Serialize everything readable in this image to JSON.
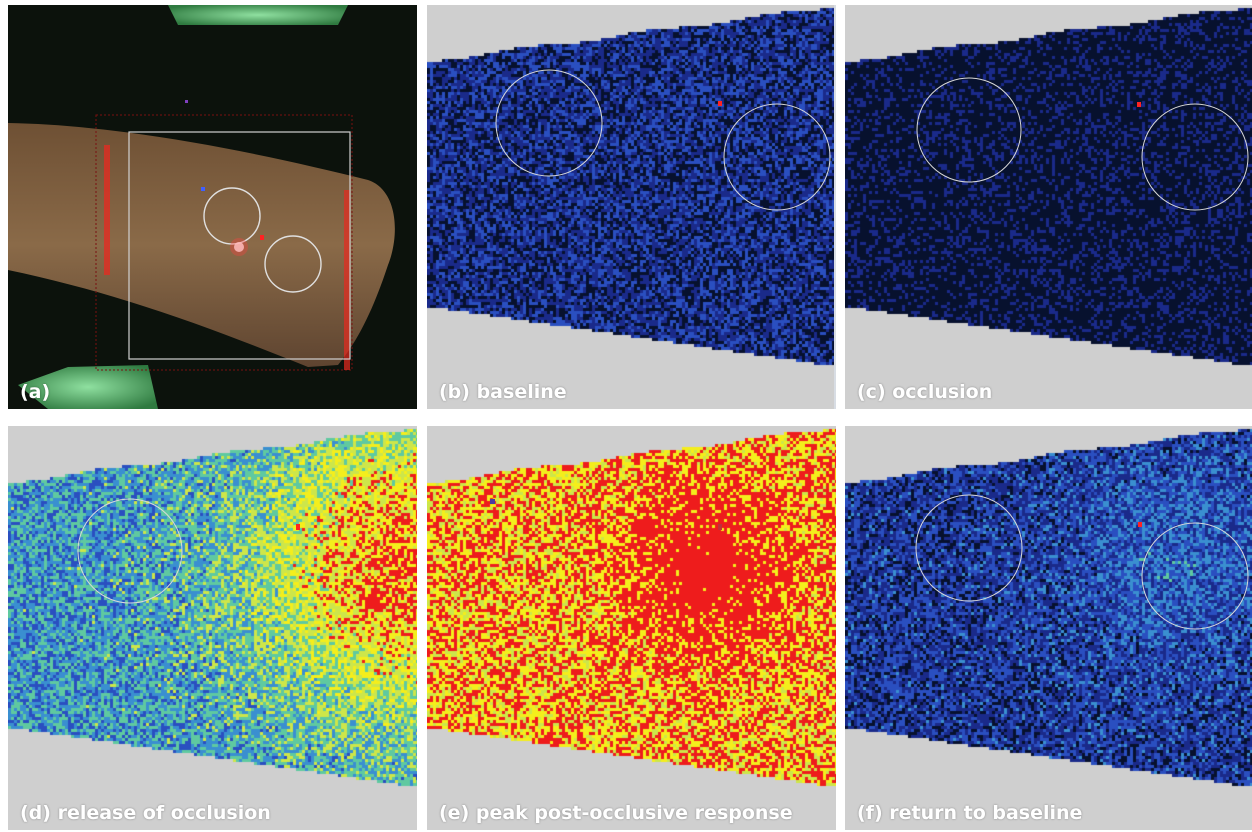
{
  "panels": [
    {
      "id": "a",
      "caption": "(a)",
      "kind": "photo",
      "description_colors": {
        "skin": "#7a5a3a",
        "background": "#0c120c",
        "green": "#4fbf6a",
        "laser": "#ff3030",
        "roi": "#d8d8d8"
      }
    },
    {
      "id": "b",
      "caption": "(b) baseline",
      "kind": "perfusion",
      "level": 0.18
    },
    {
      "id": "c",
      "caption": "(c) occlusion",
      "kind": "perfusion",
      "level": 0.05
    },
    {
      "id": "d",
      "caption": "(d) release of occlusion",
      "kind": "perfusion",
      "level": 0.45
    },
    {
      "id": "e",
      "caption": "(e) peak post-occlusive response",
      "kind": "perfusion",
      "level": 0.85
    },
    {
      "id": "f",
      "caption": "(f) return to baseline",
      "kind": "perfusion",
      "level": 0.22
    }
  ],
  "colors": {
    "background_gray": "#cfcfcf",
    "perfusion_scale": [
      "#07112e",
      "#1a2a8a",
      "#2a4fc0",
      "#3a8fd0",
      "#5fc9a0",
      "#cde64a",
      "#f4ee1c",
      "#ee1c1c"
    ],
    "roi_circle": "#d9d9d9",
    "marker": "#ff2222"
  }
}
